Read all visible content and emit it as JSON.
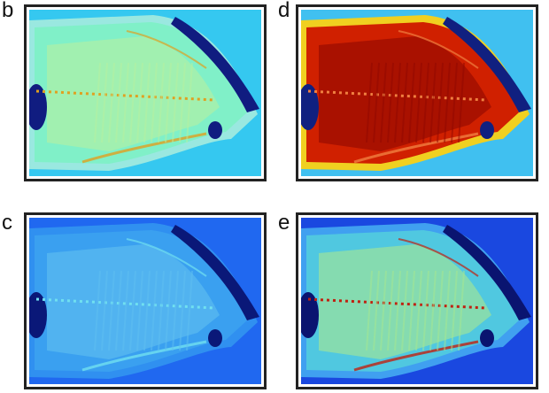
{
  "panels": [
    {
      "label": "b"
    },
    {
      "label": "d"
    },
    {
      "label": "c"
    },
    {
      "label": "e"
    }
  ]
}
